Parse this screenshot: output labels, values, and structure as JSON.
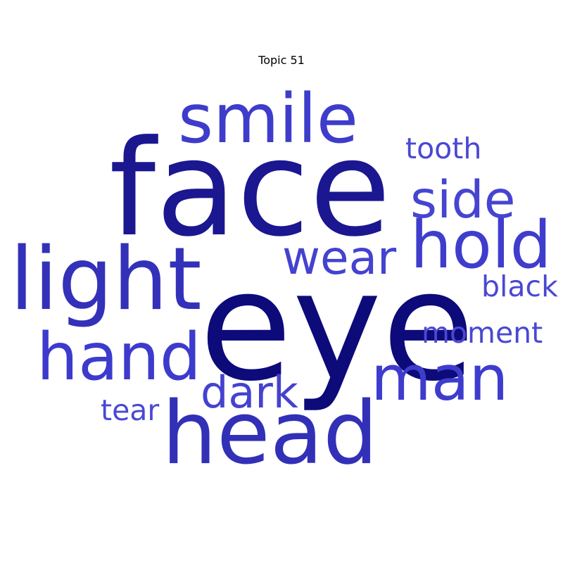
{
  "chart_data": {
    "type": "wordcloud",
    "title": "Topic 51",
    "words": [
      {
        "text": "eye",
        "weight": 1.0,
        "color": "#0d0a7a"
      },
      {
        "text": "face",
        "weight": 0.9,
        "color": "#1b1790"
      },
      {
        "text": "head",
        "weight": 0.62,
        "color": "#3230b7"
      },
      {
        "text": "light",
        "weight": 0.62,
        "color": "#3331b9"
      },
      {
        "text": "smile",
        "weight": 0.55,
        "color": "#3e3ccb"
      },
      {
        "text": "hold",
        "weight": 0.52,
        "color": "#3f3dcc"
      },
      {
        "text": "hand",
        "weight": 0.5,
        "color": "#3d3bcc"
      },
      {
        "text": "man",
        "weight": 0.48,
        "color": "#3e3ccd"
      },
      {
        "text": "side",
        "weight": 0.42,
        "color": "#4644d1"
      },
      {
        "text": "wear",
        "weight": 0.38,
        "color": "#4442cf"
      },
      {
        "text": "dark",
        "weight": 0.36,
        "color": "#4442cf"
      },
      {
        "text": "moment",
        "weight": 0.24,
        "color": "#4a48d3"
      },
      {
        "text": "tooth",
        "weight": 0.24,
        "color": "#4a48d3"
      },
      {
        "text": "black",
        "weight": 0.24,
        "color": "#4a48d3"
      },
      {
        "text": "tear",
        "weight": 0.24,
        "color": "#4a48d3"
      }
    ]
  }
}
